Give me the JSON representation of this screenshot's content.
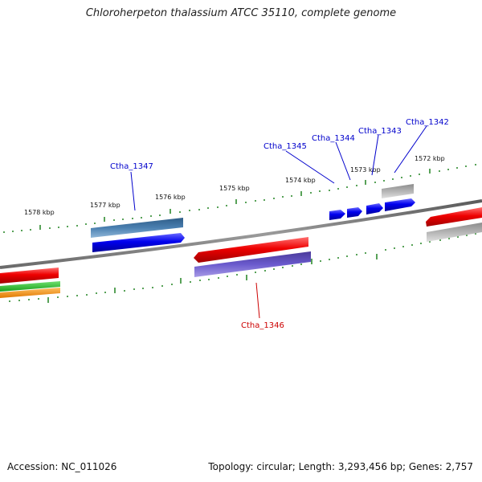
{
  "title": "Chloroherpeton thalassium ATCC 35110, complete genome",
  "footer": {
    "accession": "Accession: NC_011026",
    "stats": "Topology: circular; Length: 3,293,456 bp; Genes: 2,757"
  },
  "ticks": [
    "1578 kbp",
    "1577 kbp",
    "1576 kbp",
    "1575 kbp",
    "1574 kbp",
    "1573 kbp",
    "1572 kbp"
  ],
  "genes": [
    {
      "name": "Ctha_1347",
      "strand": "forward",
      "color": "#0000cc"
    },
    {
      "name": "Ctha_1345",
      "strand": "forward",
      "color": "#0000cc"
    },
    {
      "name": "Ctha_1344",
      "strand": "forward",
      "color": "#0000cc"
    },
    {
      "name": "Ctha_1343",
      "strand": "forward",
      "color": "#0000cc"
    },
    {
      "name": "Ctha_1342",
      "strand": "forward",
      "color": "#0000cc"
    },
    {
      "name": "Ctha_1346",
      "strand": "reverse",
      "color": "#cc0000"
    }
  ],
  "colors": {
    "backbone": "#808080",
    "tick": "#2e8b2e",
    "forward_gene": "#0000ee",
    "reverse_gene": "#ee0000",
    "highlight_forward": "#0000cc",
    "highlight_reverse": "#cc0000"
  }
}
